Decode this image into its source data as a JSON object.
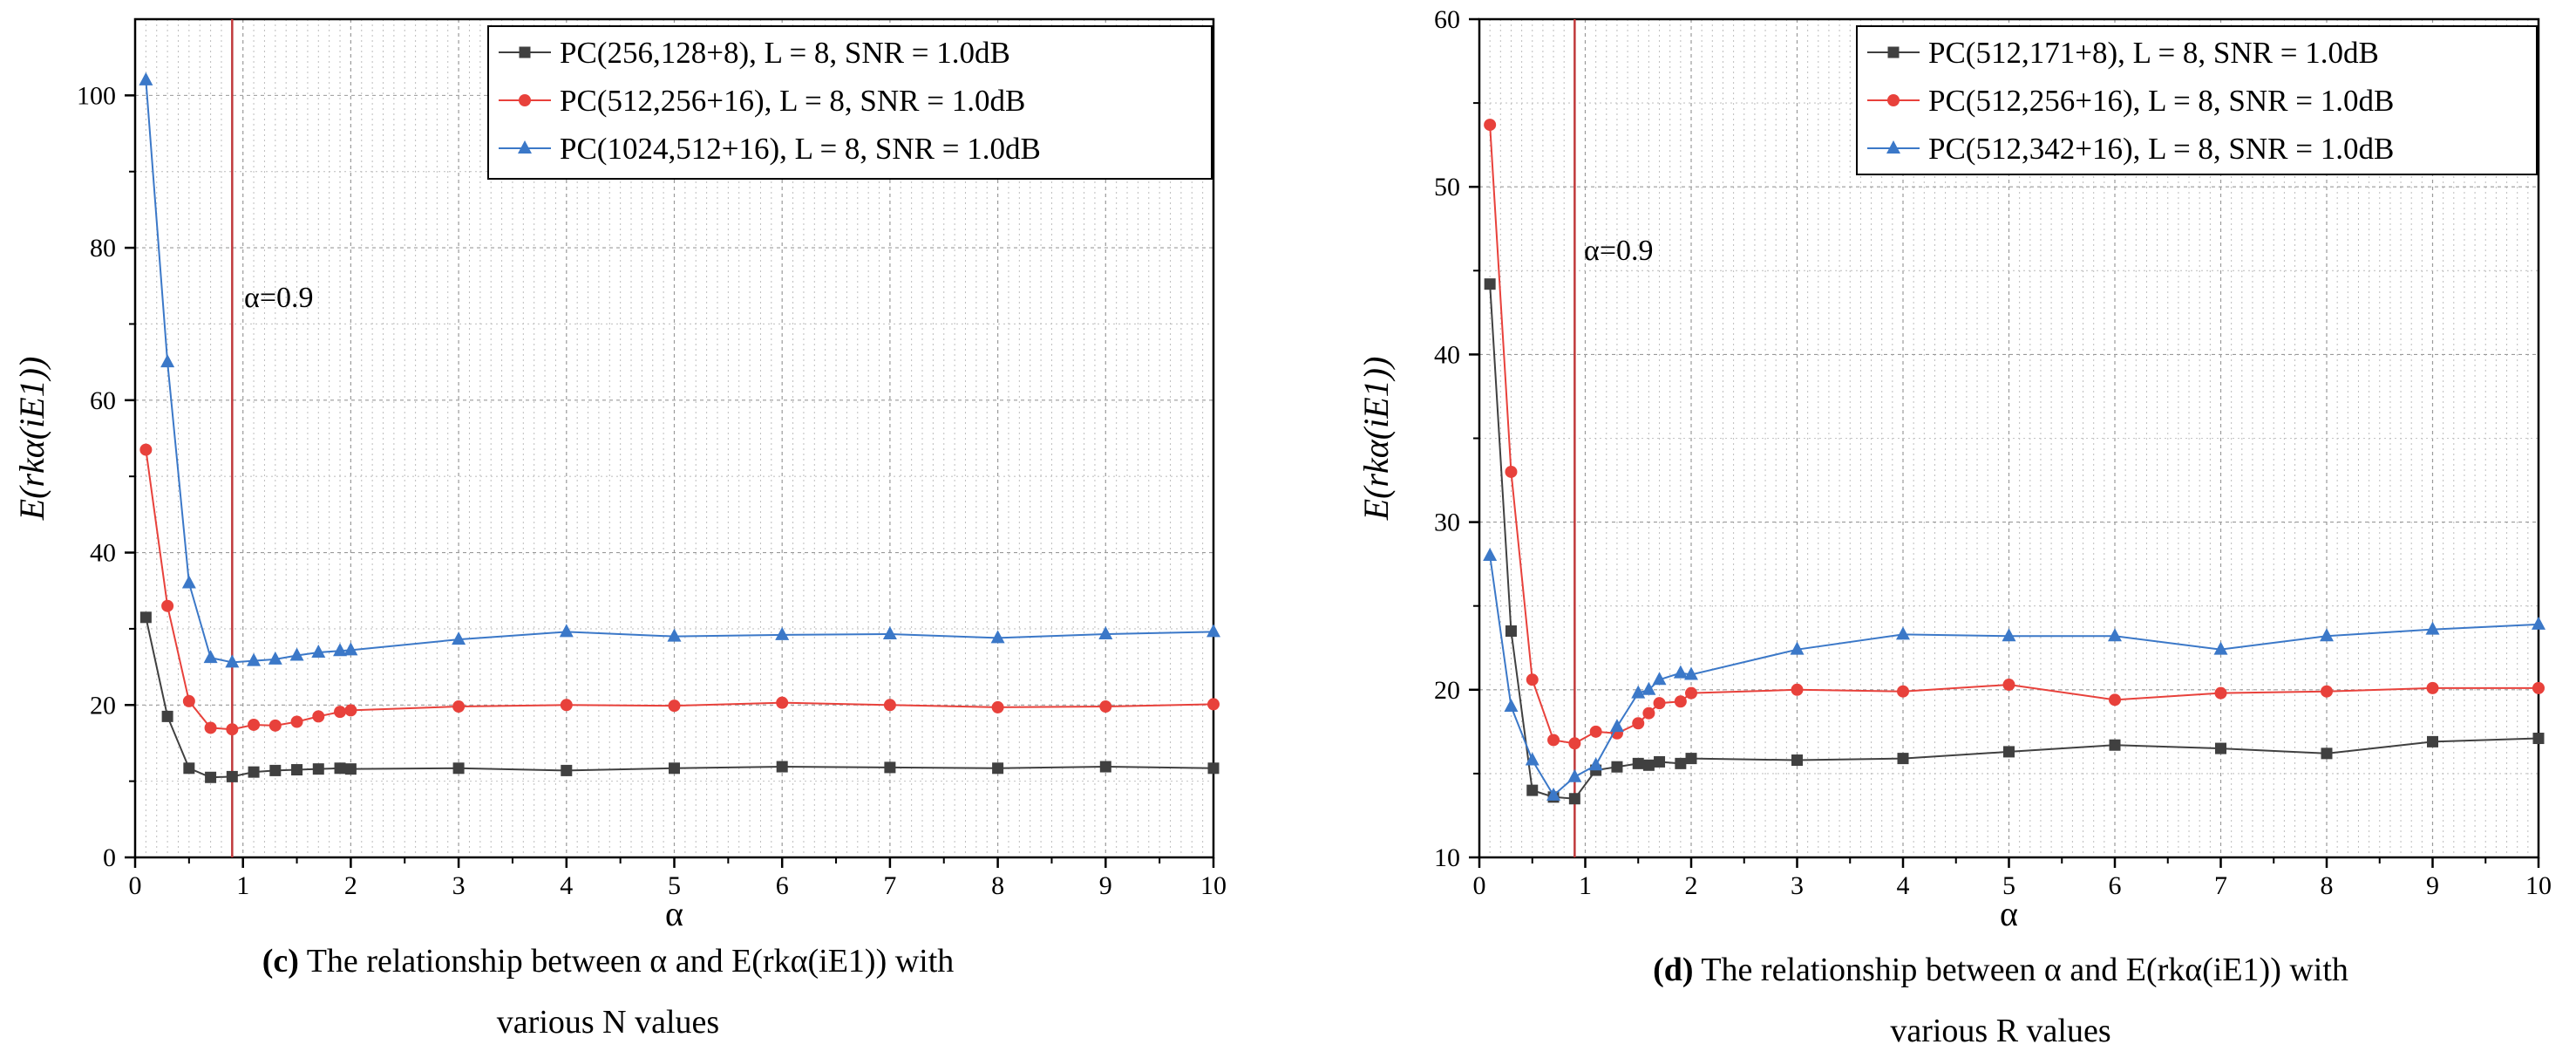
{
  "chart_data": [
    {
      "type": "line",
      "panel_label": "(c)",
      "title": "The relationship between α and E(rkα(iE1)) with various N values",
      "xlabel": "α",
      "ylabel": "E(rkα(iE1))",
      "xlim": [
        0,
        10
      ],
      "ylim": [
        0,
        110
      ],
      "xticks": [
        0,
        1,
        2,
        3,
        4,
        5,
        6,
        7,
        8,
        9,
        10
      ],
      "yticks": [
        0,
        20,
        40,
        60,
        80,
        100
      ],
      "grid": true,
      "legend_position": "top-right",
      "annotation": {
        "text": "α=0.9",
        "x": 0.9
      },
      "series": [
        {
          "name": "PC(256,128+8), L = 8, SNR = 1.0dB",
          "color": "#404040",
          "marker": "square",
          "x": [
            0.1,
            0.3,
            0.5,
            0.7,
            0.9,
            1.1,
            1.3,
            1.5,
            1.7,
            1.9,
            2,
            3,
            4,
            5,
            6,
            7,
            8,
            9,
            10
          ],
          "y": [
            31.5,
            18.5,
            11.7,
            10.5,
            10.6,
            11.2,
            11.4,
            11.5,
            11.6,
            11.7,
            11.6,
            11.7,
            11.4,
            11.7,
            11.9,
            11.8,
            11.7,
            11.9,
            11.7
          ]
        },
        {
          "name": "PC(512,256+16), L = 8, SNR = 1.0dB",
          "color": "#e8413b",
          "marker": "circle",
          "x": [
            0.1,
            0.3,
            0.5,
            0.7,
            0.9,
            1.1,
            1.3,
            1.5,
            1.7,
            1.9,
            2,
            3,
            4,
            5,
            6,
            7,
            8,
            9,
            10
          ],
          "y": [
            53.5,
            33,
            20.5,
            17,
            16.8,
            17.4,
            17.3,
            17.8,
            18.5,
            19.1,
            19.3,
            19.8,
            20.0,
            19.9,
            20.3,
            20.0,
            19.7,
            19.8,
            20.1
          ]
        },
        {
          "name": "PC(1024,512+16), L = 8, SNR = 1.0dB",
          "color": "#3b78c8",
          "marker": "triangle",
          "x": [
            0.1,
            0.3,
            0.5,
            0.7,
            0.9,
            1.1,
            1.3,
            1.5,
            1.7,
            1.9,
            2,
            3,
            4,
            5,
            6,
            7,
            8,
            9,
            10
          ],
          "y": [
            102,
            65,
            36,
            26.2,
            25.6,
            25.8,
            26.0,
            26.5,
            26.9,
            27.1,
            27.2,
            28.6,
            29.6,
            29.0,
            29.2,
            29.3,
            28.8,
            29.3,
            29.6
          ]
        }
      ]
    },
    {
      "type": "line",
      "panel_label": "(d)",
      "title": "The relationship between α and E(rkα(iE1)) with various R values",
      "xlabel": "α",
      "ylabel": "E(rkα(iE1))",
      "xlim": [
        0,
        10
      ],
      "ylim": [
        10,
        60
      ],
      "xticks": [
        0,
        1,
        2,
        3,
        4,
        5,
        6,
        7,
        8,
        9,
        10
      ],
      "yticks": [
        10,
        20,
        30,
        40,
        50,
        60
      ],
      "grid": true,
      "legend_position": "top-right",
      "annotation": {
        "text": "α=0.9",
        "x": 0.9
      },
      "series": [
        {
          "name": "PC(512,171+8), L = 8, SNR = 1.0dB",
          "color": "#404040",
          "marker": "square",
          "x": [
            0.1,
            0.3,
            0.5,
            0.7,
            0.9,
            1.1,
            1.3,
            1.5,
            1.6,
            1.7,
            1.9,
            2,
            3,
            4,
            5,
            6,
            7,
            8,
            9,
            10
          ],
          "y": [
            44.2,
            23.5,
            14.0,
            13.6,
            13.5,
            15.2,
            15.4,
            15.6,
            15.5,
            15.7,
            15.6,
            15.9,
            15.8,
            15.9,
            16.3,
            16.7,
            16.5,
            16.2,
            16.9,
            17.1
          ]
        },
        {
          "name": "PC(512,256+16), L = 8, SNR = 1.0dB",
          "color": "#e8413b",
          "marker": "circle",
          "x": [
            0.1,
            0.3,
            0.5,
            0.7,
            0.9,
            1.1,
            1.3,
            1.5,
            1.6,
            1.7,
            1.9,
            2,
            3,
            4,
            5,
            6,
            7,
            8,
            9,
            10
          ],
          "y": [
            53.7,
            33.0,
            20.6,
            17.0,
            16.8,
            17.5,
            17.4,
            18.0,
            18.6,
            19.2,
            19.3,
            19.8,
            20.0,
            19.9,
            20.3,
            19.4,
            19.8,
            19.9,
            20.1,
            20.1
          ]
        },
        {
          "name": "PC(512,342+16), L = 8, SNR = 1.0dB",
          "color": "#3b78c8",
          "marker": "triangle",
          "x": [
            0.1,
            0.3,
            0.5,
            0.7,
            0.9,
            1.1,
            1.3,
            1.5,
            1.6,
            1.7,
            1.9,
            2,
            3,
            4,
            5,
            6,
            7,
            8,
            9,
            10
          ],
          "y": [
            28.0,
            19.0,
            15.8,
            13.7,
            14.8,
            15.5,
            17.8,
            19.8,
            20.0,
            20.6,
            21.0,
            20.9,
            22.4,
            23.3,
            23.2,
            23.2,
            22.4,
            23.2,
            23.6,
            23.9
          ]
        }
      ]
    }
  ],
  "captions": [
    {
      "label": "(c)",
      "line1": "The relationship between  α and E(rkα(iE1)) with",
      "line2": "various N values"
    },
    {
      "label": "(d)",
      "line1": "The relationship between  α and E(rkα(iE1)) with",
      "line2": "various R values"
    }
  ]
}
